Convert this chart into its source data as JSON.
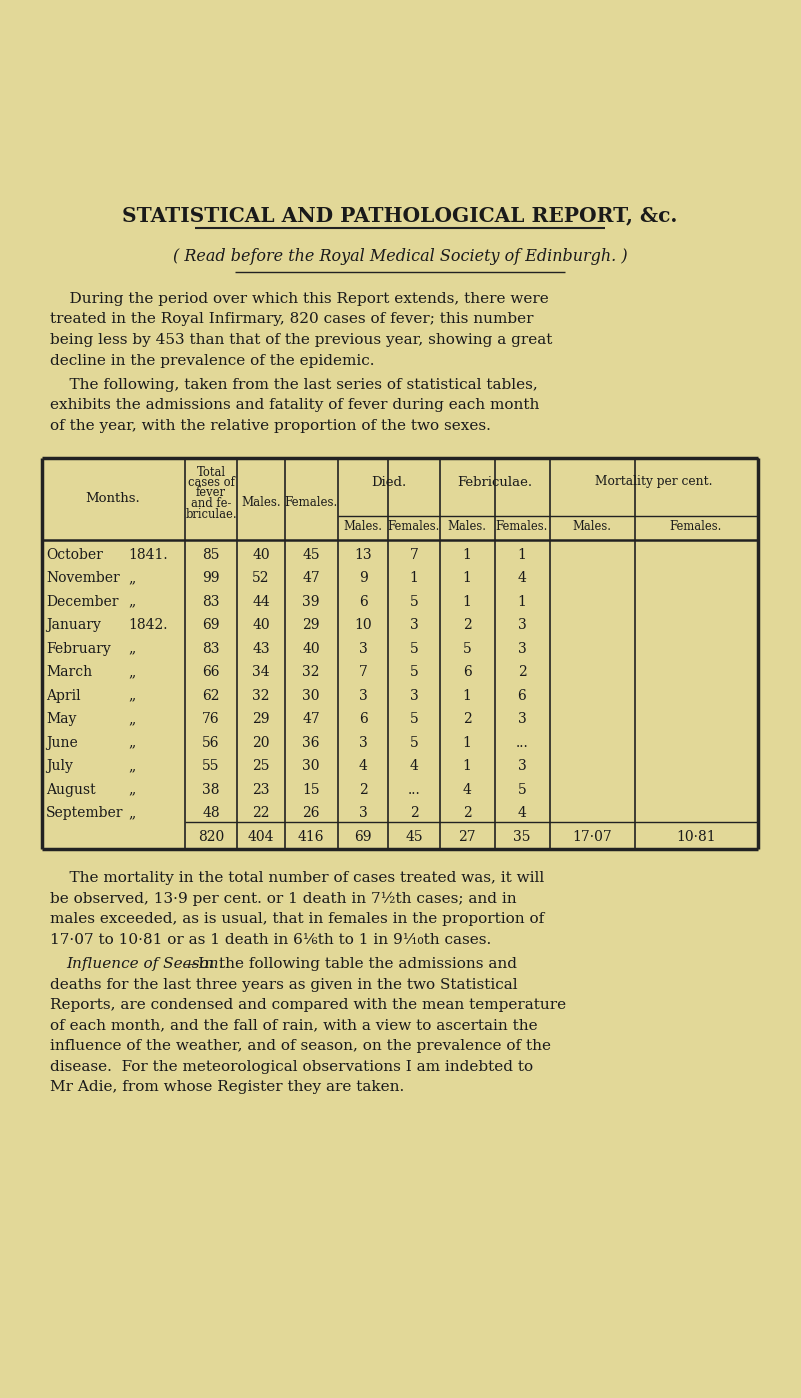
{
  "bg_color": "#e2d898",
  "text_color": "#1a1a1a",
  "line_color": "#222222",
  "title": "STATISTICAL AND PATHOLOGICAL REPORT, &c.",
  "subtitle": "( Read before the Royal Medical Society of Edinburgh. )",
  "para1_lines": [
    "    During the period over which this Report extends, there were",
    "treated in the Royal Infirmary, 820 cases of fever; this number",
    "being less by 453 than that of the previous year, showing a great",
    "decline in the prevalence of the epidemic."
  ],
  "para2_lines": [
    "    The following, taken from the last series of statistical tables,",
    "exhibits the admissions and fatality of fever during each month",
    "of the year, with the relative proportion of the two sexes."
  ],
  "para3_lines": [
    "    The mortality in the total number of cases treated was, it will",
    "be observed, 13·9 per cent. or 1 death in 7½th cases; and in",
    "males exceeded, as is usual, that in females in the proportion of",
    "17·07 to 10·81 or as 1 death in 6⅙th to 1 in 9⅒th cases."
  ],
  "para4_italic": "Influence of Season.",
  "para4_rest": "—In the following table the admissions and",
  "para4_cont": [
    "deaths for the last three years as given in the two Statistical",
    "Reports, are condensed and compared with the mean temperature",
    "of each month, and the fall of rain, with a view to ascertain the",
    "influence of the weather, and of season, on the prevalence of the",
    "disease.  For the meteorological observations I am indebted to",
    "Mr Adie, from whose Register they are taken."
  ],
  "month_names": [
    "October",
    "November",
    "December",
    "January",
    "February",
    "March",
    "April",
    "May",
    "June",
    "July",
    "August",
    "September"
  ],
  "month_years": [
    "1841.",
    "„",
    "„",
    "1842.",
    "„",
    "„",
    "„",
    "„",
    "„",
    "„",
    "„",
    "„"
  ],
  "row_data": [
    [
      "85",
      "40",
      "45",
      "13",
      "7",
      "1",
      "1",
      "",
      ""
    ],
    [
      "99",
      "52",
      "47",
      "9",
      "1",
      "1",
      "4",
      "",
      ""
    ],
    [
      "83",
      "44",
      "39",
      "6",
      "5",
      "1",
      "1",
      "",
      ""
    ],
    [
      "69",
      "40",
      "29",
      "10",
      "3",
      "2",
      "3",
      "",
      ""
    ],
    [
      "83",
      "43",
      "40",
      "3",
      "5",
      "5",
      "3",
      "",
      ""
    ],
    [
      "66",
      "34",
      "32",
      "7",
      "5",
      "6",
      "2",
      "",
      ""
    ],
    [
      "62",
      "32",
      "30",
      "3",
      "3",
      "1",
      "6",
      "",
      ""
    ],
    [
      "76",
      "29",
      "47",
      "6",
      "5",
      "2",
      "3",
      "",
      ""
    ],
    [
      "56",
      "20",
      "36",
      "3",
      "5",
      "1",
      "...",
      "",
      ""
    ],
    [
      "55",
      "25",
      "30",
      "4",
      "4",
      "1",
      "3",
      "",
      ""
    ],
    [
      "38",
      "23",
      "15",
      "2",
      "...",
      "4",
      "5",
      "",
      ""
    ],
    [
      "48",
      "22",
      "26",
      "3",
      "2",
      "2",
      "4",
      "",
      ""
    ]
  ],
  "totals": [
    "820",
    "404",
    "416",
    "69",
    "45",
    "27",
    "35",
    "17·07",
    "10·81"
  ]
}
